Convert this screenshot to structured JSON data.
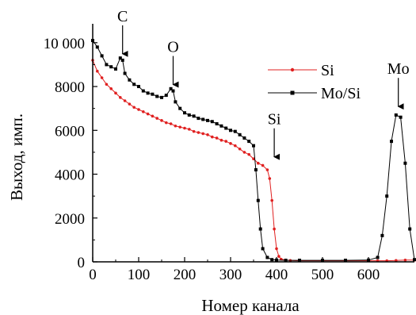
{
  "chart_data": {
    "type": "scatter",
    "title": "",
    "xlabel": "Номер канала",
    "ylabel": "Выход, имп.",
    "xlim": [
      0,
      700
    ],
    "ylim": [
      0,
      10500
    ],
    "x_ticks": [
      0,
      100,
      200,
      300,
      400,
      500,
      600
    ],
    "x_tick_labels": [
      "0",
      "100",
      "200",
      "300",
      "400",
      "500",
      "600"
    ],
    "y_ticks": [
      0,
      2000,
      4000,
      6000,
      8000,
      10000
    ],
    "y_tick_labels": [
      "0",
      "2000",
      "4000",
      "6000",
      "8000",
      "10 000"
    ],
    "grid": false,
    "legend_position": "top-right",
    "colors": {
      "Si": "#e02020",
      "Mo/Si": "#000000"
    },
    "series": [
      {
        "name": "Si",
        "x": [
          0,
          10,
          20,
          30,
          40,
          50,
          60,
          70,
          80,
          90,
          100,
          110,
          120,
          130,
          140,
          150,
          160,
          170,
          180,
          190,
          200,
          210,
          220,
          230,
          240,
          250,
          260,
          270,
          280,
          290,
          300,
          310,
          320,
          330,
          340,
          350,
          360,
          370,
          380,
          385,
          390,
          395,
          400,
          405,
          410,
          420,
          430,
          450,
          500,
          550,
          600,
          620,
          640,
          660,
          680,
          700
        ],
        "y": [
          9200,
          8700,
          8400,
          8100,
          7900,
          7700,
          7500,
          7350,
          7200,
          7050,
          6950,
          6850,
          6750,
          6650,
          6550,
          6450,
          6350,
          6300,
          6200,
          6150,
          6100,
          6050,
          5950,
          5900,
          5850,
          5800,
          5700,
          5650,
          5550,
          5500,
          5400,
          5300,
          5150,
          5000,
          4900,
          4700,
          4500,
          4400,
          4200,
          3800,
          2800,
          1500,
          600,
          250,
          120,
          80,
          60,
          50,
          50,
          50,
          50,
          50,
          50,
          60,
          80,
          80
        ]
      },
      {
        "name": "Mo/Si",
        "x": [
          0,
          10,
          20,
          30,
          40,
          50,
          60,
          65,
          70,
          80,
          90,
          100,
          110,
          120,
          130,
          140,
          150,
          160,
          170,
          175,
          180,
          190,
          200,
          210,
          220,
          230,
          240,
          250,
          260,
          270,
          280,
          290,
          300,
          310,
          320,
          330,
          340,
          350,
          355,
          360,
          365,
          370,
          380,
          390,
          400,
          420,
          450,
          500,
          550,
          600,
          620,
          630,
          640,
          650,
          660,
          670,
          680,
          690,
          700
        ],
        "y": [
          10100,
          9800,
          9400,
          9000,
          8900,
          8800,
          9300,
          9200,
          8600,
          8300,
          8100,
          8000,
          7800,
          7700,
          7650,
          7550,
          7500,
          7600,
          7900,
          7800,
          7300,
          7000,
          6800,
          6700,
          6650,
          6550,
          6500,
          6450,
          6400,
          6300,
          6200,
          6100,
          6000,
          5950,
          5800,
          5650,
          5500,
          5300,
          4200,
          2800,
          1500,
          600,
          200,
          100,
          80,
          70,
          70,
          70,
          70,
          80,
          200,
          1200,
          3000,
          5500,
          6700,
          6600,
          4500,
          1500,
          100
        ]
      }
    ],
    "annotations": [
      {
        "text": "C",
        "x": 65,
        "y": 9200
      },
      {
        "text": "O",
        "x": 175,
        "y": 7800
      },
      {
        "text": "Si",
        "x": 395,
        "y": 4500
      },
      {
        "text": "Mo",
        "x": 665,
        "y": 6800
      }
    ]
  }
}
